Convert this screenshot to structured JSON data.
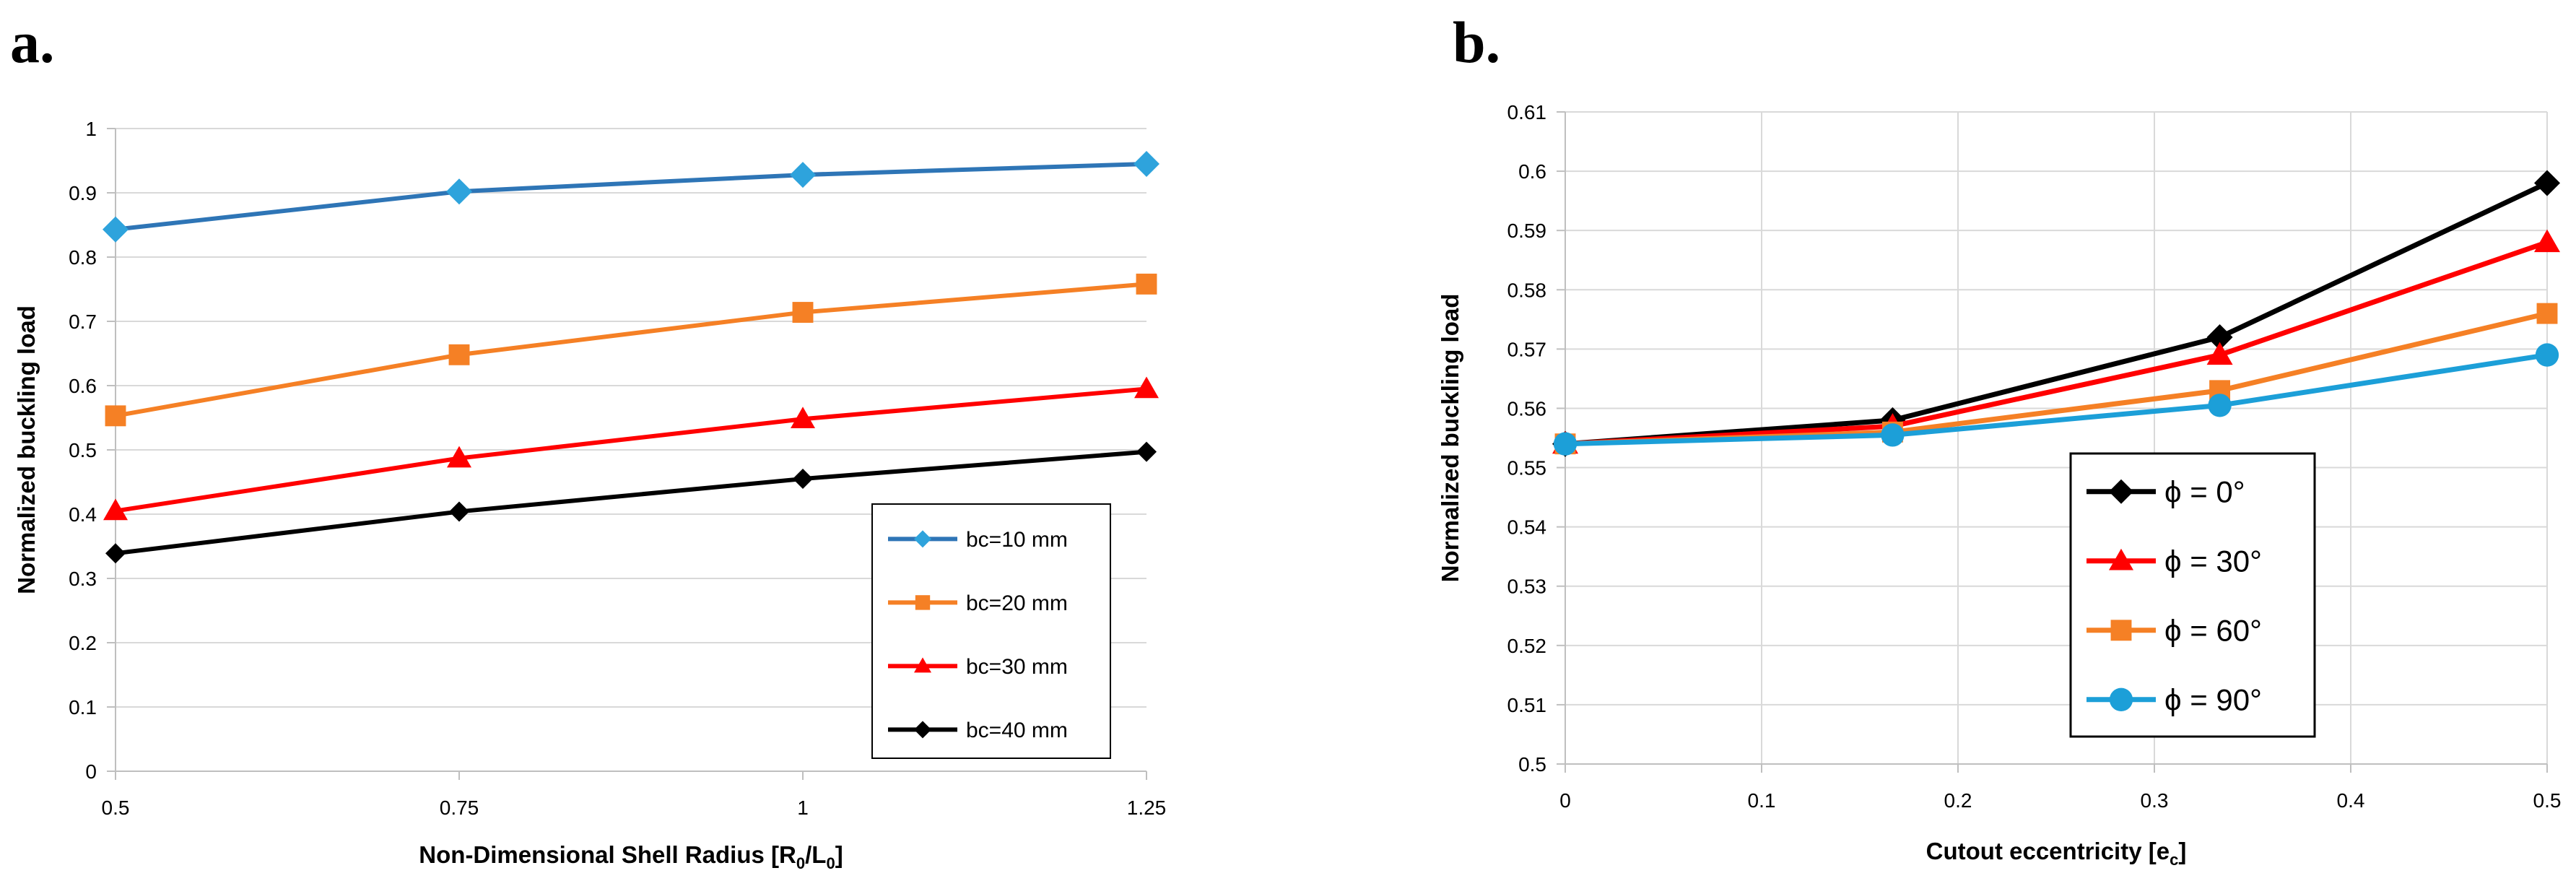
{
  "panels": {
    "a": {
      "letter": "a."
    },
    "b": {
      "letter": "b."
    }
  },
  "chart_data": [
    {
      "type": "line",
      "panel": "a.",
      "title": "",
      "xlabel_main": "Non-Dimensional  Shell Radius [R",
      "xlabel_parts": [
        "Non-Dimensional  Shell Radius [R",
        "0",
        "/L",
        "0",
        "]"
      ],
      "xlabel": "Non-Dimensional  Shell Radius [R0/L0]",
      "ylabel": "Normalized buckling load",
      "x": [
        0.5,
        0.75,
        1,
        1.25
      ],
      "x_tick_labels": [
        "0.5",
        "0.75",
        "1",
        "1.25"
      ],
      "xlim": [
        0.5,
        1.25
      ],
      "ylim": [
        0,
        1
      ],
      "y_ticks": [
        0,
        0.1,
        0.2,
        0.3,
        0.4,
        0.5,
        0.6,
        0.7,
        0.8,
        0.9,
        1
      ],
      "y_tick_labels": [
        "0",
        "0.1",
        "0.2",
        "0.3",
        "0.4",
        "0.5",
        "0.6",
        "0.7",
        "0.8",
        "0.9",
        "1"
      ],
      "grid": "horizontal",
      "legend_position": "lower-right",
      "series": [
        {
          "name": "bc=10 mm",
          "values": [
            0.843,
            0.902,
            0.928,
            0.945
          ],
          "color": "#2e75b6",
          "marker": "diamond-light"
        },
        {
          "name": "bc=20 mm",
          "values": [
            0.553,
            0.648,
            0.714,
            0.758
          ],
          "color": "#f58025",
          "marker": "square"
        },
        {
          "name": "bc=30 mm",
          "values": [
            0.405,
            0.487,
            0.548,
            0.595
          ],
          "color": "#ff0000",
          "marker": "triangle"
        },
        {
          "name": "bc=40 mm",
          "values": [
            0.339,
            0.404,
            0.455,
            0.497
          ],
          "color": "#000000",
          "marker": "diamond"
        }
      ]
    },
    {
      "type": "line",
      "panel": "b.",
      "title": "",
      "xlabel_parts": [
        "Cutout eccentricity [e",
        "c",
        "]"
      ],
      "xlabel": "Cutout eccentricity [ec]",
      "ylabel": "Normalized buckling load",
      "x": [
        0,
        0.1667,
        0.3333,
        0.5
      ],
      "xlim": [
        0,
        0.5
      ],
      "x_ticks": [
        0,
        0.1,
        0.2,
        0.3,
        0.4,
        0.5
      ],
      "x_tick_labels": [
        "0",
        "0.1",
        "0.2",
        "0.3",
        "0.4",
        "0.5"
      ],
      "ylim": [
        0.5,
        0.61
      ],
      "y_ticks": [
        0.5,
        0.51,
        0.52,
        0.53,
        0.54,
        0.55,
        0.56,
        0.57,
        0.58,
        0.59,
        0.6,
        0.61
      ],
      "y_tick_labels": [
        "0.5",
        "0.51",
        "0.52",
        "0.53",
        "0.54",
        "0.55",
        "0.56",
        "0.57",
        "0.58",
        "0.59",
        "0.6",
        "0.61"
      ],
      "grid": "both",
      "legend_position": "center-right",
      "series": [
        {
          "name": "ϕ = 0°",
          "values": [
            0.554,
            0.558,
            0.572,
            0.598
          ],
          "color": "#000000",
          "marker": "diamond"
        },
        {
          "name": "ϕ = 30°",
          "values": [
            0.554,
            0.557,
            0.569,
            0.588
          ],
          "color": "#ff0000",
          "marker": "triangle"
        },
        {
          "name": "ϕ = 60°",
          "values": [
            0.554,
            0.556,
            0.563,
            0.576
          ],
          "color": "#f58025",
          "marker": "square"
        },
        {
          "name": "ϕ = 90°",
          "values": [
            0.554,
            0.5555,
            0.5605,
            0.569
          ],
          "color": "#1c9fd8",
          "marker": "circle"
        }
      ]
    }
  ]
}
